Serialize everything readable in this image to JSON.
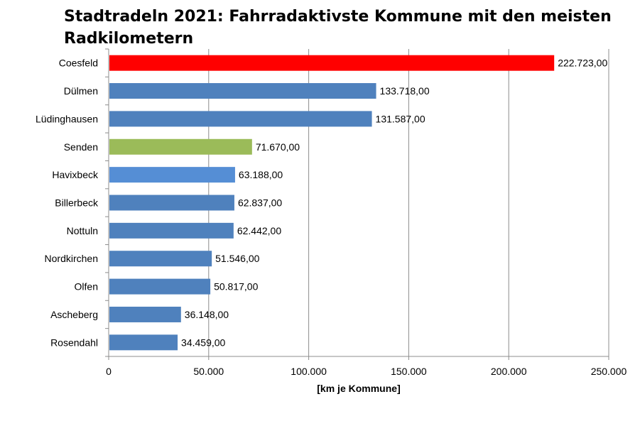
{
  "chart_data": {
    "type": "bar",
    "orientation": "horizontal",
    "title": "Stadtradeln 2021: Fahrradaktivste Kommune mit den meisten Radkilometern",
    "xlabel": "[km je Kommune]",
    "ylabel": "",
    "xlim": [
      0,
      250000
    ],
    "xticks": [
      0,
      50000,
      100000,
      150000,
      200000,
      250000
    ],
    "xtick_labels": [
      "0",
      "50.000",
      "100.000",
      "150.000",
      "200.000",
      "250.000"
    ],
    "grid": true,
    "legend": "none",
    "categories": [
      "Coesfeld",
      "Dülmen",
      "Lüdinghausen",
      "Senden",
      "Havixbeck",
      "Billerbeck",
      "Nottuln",
      "Nordkirchen",
      "Olfen",
      "Ascheberg",
      "Rosendahl"
    ],
    "values": [
      222723,
      133718,
      131587,
      71670,
      63188,
      62837,
      62442,
      51546,
      50817,
      36148,
      34459
    ],
    "value_labels": [
      "222.723,00",
      "133.718,00",
      "131.587,00",
      "71.670,00",
      "63.188,00",
      "62.837,00",
      "62.442,00",
      "51.546,00",
      "50.817,00",
      "36.148,00",
      "34.459,00"
    ],
    "bar_colors": [
      "#ff0000",
      "#4f81bd",
      "#4f81bd",
      "#9bbb59",
      "#558ed5",
      "#4f81bd",
      "#4f81bd",
      "#4f81bd",
      "#4f81bd",
      "#4f81bd",
      "#4f81bd"
    ]
  }
}
